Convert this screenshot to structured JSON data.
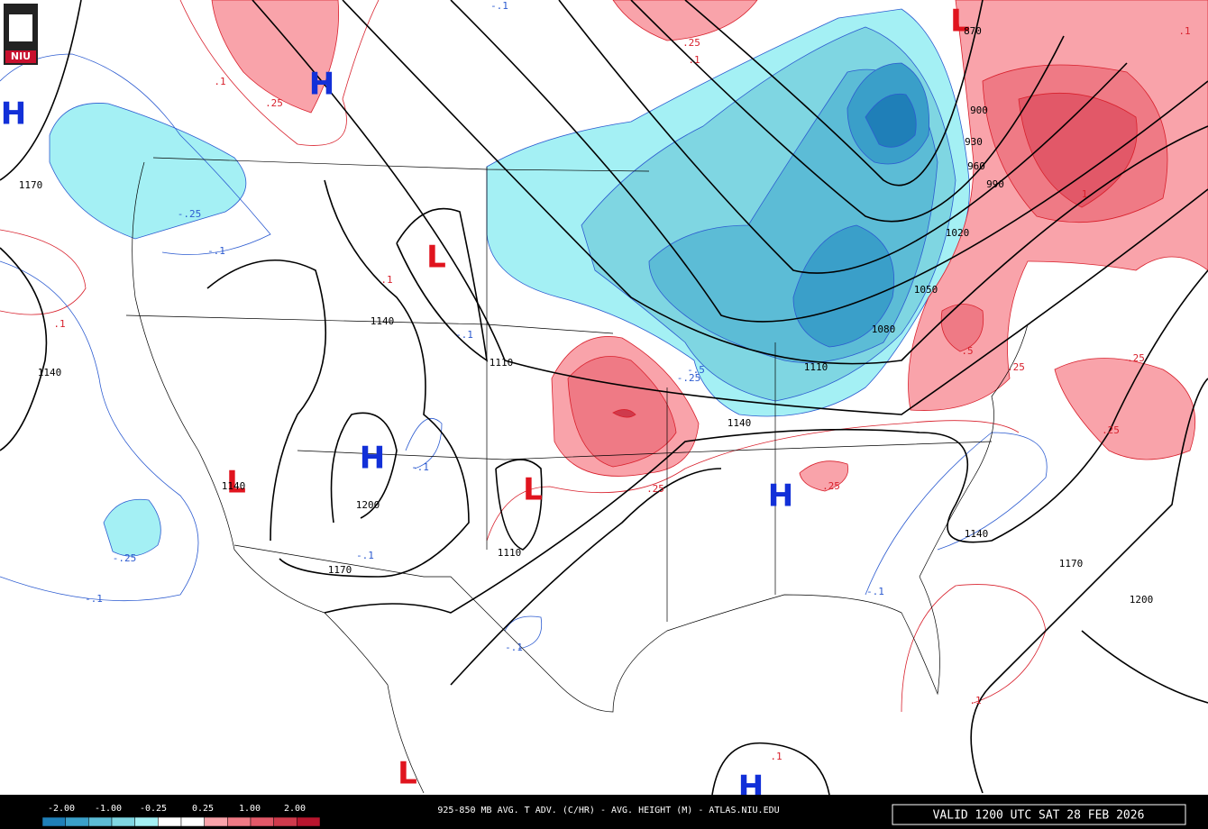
{
  "header": {
    "logo": "NIU"
  },
  "map": {
    "pressure_centers": [
      "H",
      "H",
      "H",
      "H",
      "H",
      "L",
      "L",
      "L",
      "L",
      "L"
    ],
    "height_labels": [
      "870",
      "900",
      "930",
      "960",
      "990",
      "1020",
      "1050",
      "1080",
      "1110",
      "1110",
      "1110",
      "1140",
      "1140",
      "1140",
      "1140",
      "1140",
      "1170",
      "1170",
      "1170",
      "1200",
      "1200"
    ],
    "warm_advection_labels": [
      ".1",
      ".25",
      ".25",
      ".1",
      ".1",
      ".1",
      ".25",
      ".25",
      ".25",
      ".25",
      ".5",
      ".25",
      "1",
      ".1",
      ".1",
      ".1"
    ],
    "cold_advection_labels": [
      "-.1",
      "-.25",
      "-.1",
      "-.5",
      "-.25",
      "-.1",
      "-.1",
      "-.25",
      "-.1",
      "-.1",
      "-.1",
      "-.1"
    ]
  },
  "colorbar": {
    "labels": [
      "-2.00",
      "-1.00",
      "-0.25",
      "0.25",
      "1.00",
      "2.00"
    ],
    "colors": [
      "#1f7fb8",
      "#3a9fc9",
      "#5cbcd6",
      "#7fd6e2",
      "#a4f0f4",
      "#ffffff",
      "#ffffff",
      "#f9a3aa",
      "#ef7a85",
      "#e25868",
      "#cf3a4c",
      "#b8152e"
    ]
  },
  "footer": {
    "title": "925-850 MB AVG. T ADV. (C/HR) - AVG. HEIGHT (M) - ATLAS.NIU.EDU",
    "valid": "VALID 1200 UTC SAT 28 FEB 2026"
  }
}
